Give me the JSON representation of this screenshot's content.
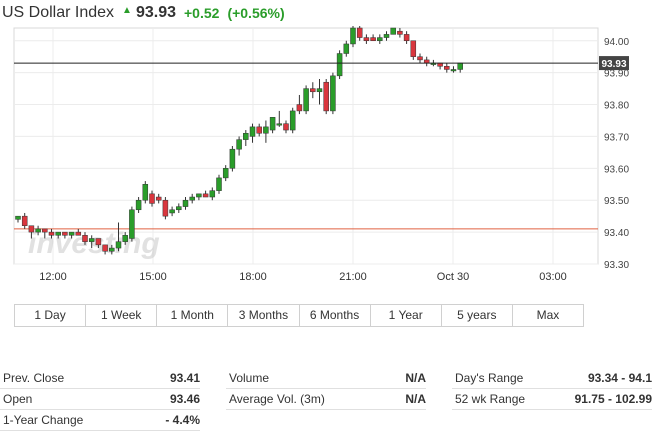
{
  "header": {
    "title": "US Dollar Index",
    "last": "93.93",
    "change": "+0.52",
    "change_pct": "(+0.56%)"
  },
  "colors": {
    "up": "#2a9d2a",
    "down": "#d9363e",
    "grid": "#ececec",
    "line": "#222222"
  },
  "watermark": "investing",
  "chart_data": {
    "type": "candlestick",
    "y_ticks": [
      "94.00",
      "93.90",
      "93.80",
      "93.70",
      "93.60",
      "93.50",
      "93.40",
      "93.30"
    ],
    "y_range": [
      93.3,
      94.04
    ],
    "x_labels": [
      "12:00",
      "15:00",
      "18:00",
      "21:00",
      "Oct 30",
      "03:00"
    ],
    "current_price_label": "93.93",
    "prev_close": 93.41,
    "candles": [
      {
        "o": 93.44,
        "h": 93.45,
        "l": 93.43,
        "c": 93.45
      },
      {
        "o": 93.45,
        "h": 93.46,
        "l": 93.41,
        "c": 93.42
      },
      {
        "o": 93.42,
        "h": 93.42,
        "l": 93.38,
        "c": 93.4
      },
      {
        "o": 93.4,
        "h": 93.42,
        "l": 93.39,
        "c": 93.41
      },
      {
        "o": 93.41,
        "h": 93.41,
        "l": 93.38,
        "c": 93.4
      },
      {
        "o": 93.4,
        "h": 93.41,
        "l": 93.38,
        "c": 93.39
      },
      {
        "o": 93.39,
        "h": 93.4,
        "l": 93.38,
        "c": 93.4
      },
      {
        "o": 93.4,
        "h": 93.4,
        "l": 93.38,
        "c": 93.39
      },
      {
        "o": 93.39,
        "h": 93.4,
        "l": 93.38,
        "c": 93.4
      },
      {
        "o": 93.4,
        "h": 93.41,
        "l": 93.39,
        "c": 93.39
      },
      {
        "o": 93.39,
        "h": 93.4,
        "l": 93.36,
        "c": 93.37
      },
      {
        "o": 93.37,
        "h": 93.39,
        "l": 93.35,
        "c": 93.38
      },
      {
        "o": 93.38,
        "h": 93.38,
        "l": 93.35,
        "c": 93.36
      },
      {
        "o": 93.36,
        "h": 93.36,
        "l": 93.33,
        "c": 93.34
      },
      {
        "o": 93.34,
        "h": 93.36,
        "l": 93.33,
        "c": 93.35
      },
      {
        "o": 93.35,
        "h": 93.43,
        "l": 93.34,
        "c": 93.37
      },
      {
        "o": 93.37,
        "h": 93.4,
        "l": 93.36,
        "c": 93.39
      },
      {
        "o": 93.38,
        "h": 93.48,
        "l": 93.37,
        "c": 93.47
      },
      {
        "o": 93.47,
        "h": 93.51,
        "l": 93.46,
        "c": 93.5
      },
      {
        "o": 93.5,
        "h": 93.56,
        "l": 93.49,
        "c": 93.55
      },
      {
        "o": 93.52,
        "h": 93.53,
        "l": 93.48,
        "c": 93.49
      },
      {
        "o": 93.51,
        "h": 93.52,
        "l": 93.49,
        "c": 93.5
      },
      {
        "o": 93.5,
        "h": 93.51,
        "l": 93.44,
        "c": 93.45
      },
      {
        "o": 93.46,
        "h": 93.48,
        "l": 93.45,
        "c": 93.47
      },
      {
        "o": 93.47,
        "h": 93.49,
        "l": 93.46,
        "c": 93.48
      },
      {
        "o": 93.48,
        "h": 93.51,
        "l": 93.47,
        "c": 93.5
      },
      {
        "o": 93.5,
        "h": 93.52,
        "l": 93.49,
        "c": 93.51
      },
      {
        "o": 93.51,
        "h": 93.52,
        "l": 93.5,
        "c": 93.52
      },
      {
        "o": 93.52,
        "h": 93.53,
        "l": 93.51,
        "c": 93.51
      },
      {
        "o": 93.51,
        "h": 93.54,
        "l": 93.5,
        "c": 93.53
      },
      {
        "o": 93.53,
        "h": 93.58,
        "l": 93.52,
        "c": 93.57
      },
      {
        "o": 93.57,
        "h": 93.61,
        "l": 93.56,
        "c": 93.6
      },
      {
        "o": 93.6,
        "h": 93.67,
        "l": 93.59,
        "c": 93.66
      },
      {
        "o": 93.66,
        "h": 93.7,
        "l": 93.64,
        "c": 93.69
      },
      {
        "o": 93.69,
        "h": 93.72,
        "l": 93.67,
        "c": 93.71
      },
      {
        "o": 93.7,
        "h": 93.74,
        "l": 93.68,
        "c": 93.73
      },
      {
        "o": 93.73,
        "h": 93.74,
        "l": 93.7,
        "c": 93.71
      },
      {
        "o": 93.71,
        "h": 93.75,
        "l": 93.68,
        "c": 93.73
      },
      {
        "o": 93.72,
        "h": 93.76,
        "l": 93.71,
        "c": 93.76
      },
      {
        "o": 93.74,
        "h": 93.78,
        "l": 93.73,
        "c": 93.74
      },
      {
        "o": 93.74,
        "h": 93.75,
        "l": 93.71,
        "c": 93.72
      },
      {
        "o": 93.72,
        "h": 93.79,
        "l": 93.71,
        "c": 93.78
      },
      {
        "o": 93.8,
        "h": 93.83,
        "l": 93.77,
        "c": 93.78
      },
      {
        "o": 93.78,
        "h": 93.86,
        "l": 93.77,
        "c": 93.85
      },
      {
        "o": 93.85,
        "h": 93.87,
        "l": 93.82,
        "c": 93.84
      },
      {
        "o": 93.84,
        "h": 93.88,
        "l": 93.8,
        "c": 93.85
      },
      {
        "o": 93.87,
        "h": 93.88,
        "l": 93.77,
        "c": 93.78
      },
      {
        "o": 93.78,
        "h": 93.9,
        "l": 93.77,
        "c": 93.89
      },
      {
        "o": 93.89,
        "h": 93.97,
        "l": 93.88,
        "c": 93.96
      },
      {
        "o": 93.96,
        "h": 94.0,
        "l": 93.95,
        "c": 93.99
      },
      {
        "o": 93.99,
        "h": 94.05,
        "l": 93.98,
        "c": 94.04
      },
      {
        "o": 94.04,
        "h": 94.05,
        "l": 94.0,
        "c": 94.01
      },
      {
        "o": 94.01,
        "h": 94.02,
        "l": 93.99,
        "c": 94.0
      },
      {
        "o": 94.01,
        "h": 94.02,
        "l": 94.0,
        "c": 94.0
      },
      {
        "o": 94.0,
        "h": 94.02,
        "l": 93.99,
        "c": 94.01
      },
      {
        "o": 94.01,
        "h": 94.03,
        "l": 94.0,
        "c": 94.02
      },
      {
        "o": 94.02,
        "h": 94.04,
        "l": 94.02,
        "c": 94.04
      },
      {
        "o": 94.03,
        "h": 94.04,
        "l": 94.01,
        "c": 94.02
      },
      {
        "o": 94.02,
        "h": 94.03,
        "l": 93.99,
        "c": 94.0
      },
      {
        "o": 94.0,
        "h": 94.0,
        "l": 93.94,
        "c": 93.95
      },
      {
        "o": 93.95,
        "h": 93.96,
        "l": 93.93,
        "c": 93.94
      },
      {
        "o": 93.94,
        "h": 93.95,
        "l": 93.92,
        "c": 93.93
      },
      {
        "o": 93.93,
        "h": 93.94,
        "l": 93.92,
        "c": 93.93
      },
      {
        "o": 93.93,
        "h": 93.93,
        "l": 93.91,
        "c": 93.92
      },
      {
        "o": 93.92,
        "h": 93.93,
        "l": 93.9,
        "c": 93.91
      },
      {
        "o": 93.91,
        "h": 93.92,
        "l": 93.9,
        "c": 93.91
      },
      {
        "o": 93.91,
        "h": 93.93,
        "l": 93.9,
        "c": 93.93
      }
    ]
  },
  "tabs": [
    "1 Day",
    "1 Week",
    "1 Month",
    "3 Months",
    "6 Months",
    "1 Year",
    "5 years",
    "Max"
  ],
  "stats": {
    "prev_close_label": "Prev. Close",
    "prev_close": "93.41",
    "open_label": "Open",
    "open": "93.46",
    "year_change_label": "1-Year Change",
    "year_change": "- 4.4%",
    "volume_label": "Volume",
    "volume": "N/A",
    "avg_vol_label": "Average Vol. (3m)",
    "avg_vol": "N/A",
    "days_range_label": "Day's Range",
    "days_range": "93.34 - 94.1",
    "wk52_label": "52 wk Range",
    "wk52": "91.75 - 102.99"
  }
}
